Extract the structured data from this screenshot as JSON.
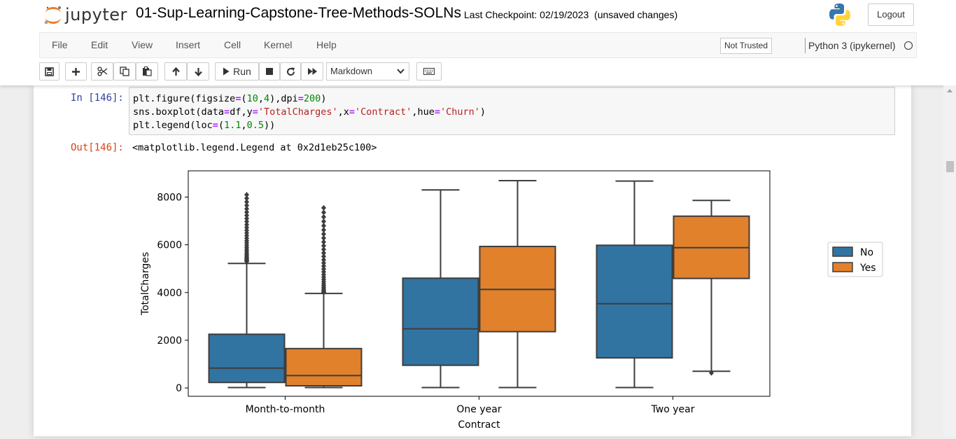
{
  "header": {
    "logo_text": "jupyter",
    "notebook_name": "01-Sup-Learning-Capstone-Tree-Methods-SOLNs",
    "checkpoint": "Last Checkpoint: 02/19/2023",
    "save_status": "(unsaved changes)",
    "logout_label": "Logout"
  },
  "menubar": {
    "items": [
      "File",
      "Edit",
      "View",
      "Insert",
      "Cell",
      "Kernel",
      "Help"
    ],
    "trust_label": "Not Trusted",
    "kernel_name": "Python 3 (ipykernel)"
  },
  "toolbar": {
    "run_label": "Run",
    "cell_type": "Markdown",
    "icons": [
      "save-icon",
      "plus-icon",
      "cut-icon",
      "copy-icon",
      "paste-icon",
      "arrow-up-icon",
      "arrow-down-icon",
      "run-icon",
      "stop-icon",
      "restart-icon",
      "fast-forward-icon",
      "keyboard-icon"
    ]
  },
  "cell": {
    "in_prompt": "In [146]:",
    "code_lines": [
      "plt.figure(figsize=(10,4),dpi=200)",
      "sns.boxplot(data=df,y='TotalCharges',x='Contract',hue='Churn')",
      "plt.legend(loc=(1.1,0.5))"
    ],
    "out_prompt": "Out[146]:",
    "out_text": "<matplotlib.legend.Legend at 0x2d1eb25c100>"
  },
  "chart_data": {
    "type": "boxplot",
    "categories": [
      "Month-to-month",
      "One year",
      "Two year"
    ],
    "xlabel": "Contract",
    "ylabel": "TotalCharges",
    "ylim": [
      -350,
      9100
    ],
    "yticks": [
      0,
      2000,
      4000,
      6000,
      8000
    ],
    "legend_position": "outside-right",
    "series": [
      {
        "name": "No",
        "color": "#3274a1",
        "boxes": [
          {
            "min": 18,
            "q1": 230,
            "median": 830,
            "q3": 2250,
            "max": 5220,
            "outliers_from": 5300,
            "outliers_to": 8100
          },
          {
            "min": 18,
            "q1": 950,
            "median": 2480,
            "q3": 4600,
            "max": 8300
          },
          {
            "min": 18,
            "q1": 1260,
            "median": 3530,
            "q3": 5980,
            "max": 8670
          }
        ]
      },
      {
        "name": "Yes",
        "color": "#e1812c",
        "boxes": [
          {
            "min": 18,
            "q1": 90,
            "median": 520,
            "q3": 1650,
            "max": 3960,
            "outliers_from": 4000,
            "outliers_to": 7550
          },
          {
            "min": 18,
            "q1": 2360,
            "median": 4130,
            "q3": 5930,
            "max": 8690
          },
          {
            "min": 700,
            "q1": 4590,
            "median": 5880,
            "q3": 7200,
            "max": 7860,
            "outlier_points": [
              630
            ]
          }
        ]
      }
    ]
  }
}
